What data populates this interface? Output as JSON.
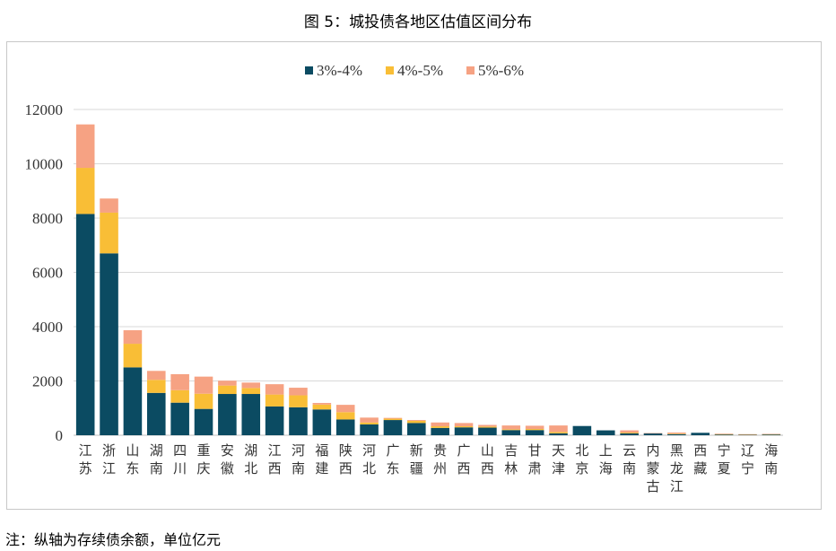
{
  "title": "图 5：城投债各地区估值区间分布",
  "note": "注：纵轴为存续债余额，单位亿元",
  "colors": {
    "s1": "#0b4b62",
    "s2": "#f9be36",
    "s3": "#f6a283",
    "grid": "#d9d9d9"
  },
  "chart_data": {
    "type": "bar",
    "stacked": true,
    "categories": [
      "江苏",
      "浙江",
      "山东",
      "湖南",
      "四川",
      "重庆",
      "安徽",
      "湖北",
      "江西",
      "河南",
      "福建",
      "陕西",
      "河北",
      "广东",
      "新疆",
      "贵州",
      "广西",
      "山西",
      "吉林",
      "甘肃",
      "天津",
      "北京",
      "上海",
      "云南",
      "内蒙古",
      "黑龙江",
      "西藏",
      "宁夏",
      "辽宁",
      "海南"
    ],
    "series": [
      {
        "name": "3%-4%",
        "values": [
          8150,
          6700,
          2500,
          1560,
          1200,
          970,
          1520,
          1520,
          1060,
          1030,
          950,
          580,
          400,
          560,
          450,
          270,
          290,
          280,
          190,
          190,
          70,
          340,
          180,
          70,
          70,
          40,
          90,
          30,
          20,
          30
        ]
      },
      {
        "name": "4%-5%",
        "values": [
          1700,
          1500,
          870,
          480,
          460,
          560,
          310,
          220,
          440,
          440,
          180,
          270,
          70,
          50,
          80,
          60,
          40,
          40,
          30,
          40,
          50,
          0,
          0,
          30,
          0,
          20,
          0,
          10,
          10,
          10
        ]
      },
      {
        "name": "5%-6%",
        "values": [
          1600,
          520,
          500,
          330,
          590,
          630,
          180,
          200,
          380,
          280,
          60,
          270,
          180,
          30,
          30,
          140,
          120,
          60,
          140,
          120,
          240,
          0,
          0,
          80,
          10,
          40,
          0,
          20,
          10,
          10
        ]
      }
    ],
    "xlabel": "",
    "ylabel": "",
    "ylim": [
      0,
      12000
    ],
    "yticks": [
      "0",
      "2000",
      "4000",
      "6000",
      "8000",
      "10000",
      "12000"
    ],
    "grid": true,
    "legend": "top-center"
  }
}
